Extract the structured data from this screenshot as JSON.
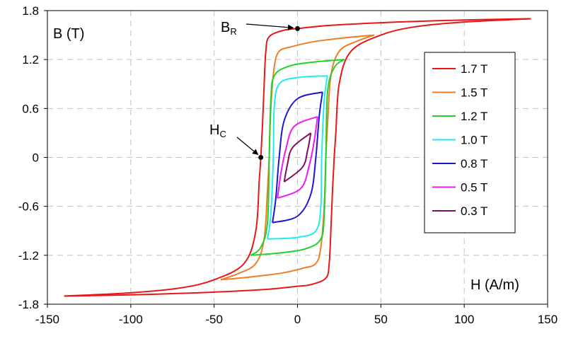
{
  "chart_data": {
    "type": "line",
    "title": "",
    "xlabel": "H (A/m)",
    "ylabel": "B (T)",
    "xlim": [
      -150,
      150
    ],
    "ylim": [
      -1.8,
      1.8
    ],
    "xticks": [
      -150,
      -100,
      -50,
      0,
      50,
      100,
      150
    ],
    "yticks": [
      -1.8,
      -1.2,
      -0.6,
      0,
      0.6,
      1.2,
      1.8
    ],
    "ytick_labels": [
      "-1.8",
      "-1.2",
      "-0.6",
      "0",
      "0.6",
      "1.2",
      "1.8"
    ],
    "grid": "dashed",
    "legend_position": "right",
    "series": [
      {
        "name": "1.7 T",
        "color": "#e8161b",
        "upper": [
          [
            -140,
            -1.7
          ],
          [
            -100,
            -1.66
          ],
          [
            -70,
            -1.6
          ],
          [
            -50,
            -1.5
          ],
          [
            -32,
            -1.3
          ],
          [
            -25,
            -0.9
          ],
          [
            -23,
            -0.3
          ],
          [
            -22,
            0.0
          ],
          [
            -21,
            0.4
          ],
          [
            -20,
            0.9
          ],
          [
            -19,
            1.3
          ],
          [
            -17,
            1.48
          ],
          [
            -8,
            1.56
          ],
          [
            0,
            1.58
          ],
          [
            20,
            1.62
          ],
          [
            60,
            1.66
          ],
          [
            100,
            1.685
          ],
          [
            140,
            1.7
          ]
        ],
        "lower": [
          [
            140,
            1.7
          ],
          [
            100,
            1.66
          ],
          [
            70,
            1.6
          ],
          [
            50,
            1.5
          ],
          [
            32,
            1.3
          ],
          [
            25,
            0.9
          ],
          [
            23,
            0.3
          ],
          [
            22,
            0.0
          ],
          [
            21,
            -0.4
          ],
          [
            20,
            -0.9
          ],
          [
            19,
            -1.3
          ],
          [
            17,
            -1.48
          ],
          [
            8,
            -1.56
          ],
          [
            0,
            -1.58
          ],
          [
            -20,
            -1.62
          ],
          [
            -60,
            -1.66
          ],
          [
            -100,
            -1.685
          ],
          [
            -140,
            -1.7
          ]
        ]
      },
      {
        "name": "1.5 T",
        "color": "#ef7d25",
        "upper": [
          [
            -46,
            -1.5
          ],
          [
            -35,
            -1.42
          ],
          [
            -25,
            -1.3
          ],
          [
            -20,
            -1.0
          ],
          [
            -18,
            -0.4
          ],
          [
            -17,
            0.0
          ],
          [
            -16,
            0.6
          ],
          [
            -14,
            1.1
          ],
          [
            -11,
            1.3
          ],
          [
            -3,
            1.36
          ],
          [
            10,
            1.42
          ],
          [
            30,
            1.47
          ],
          [
            46,
            1.5
          ]
        ],
        "lower": [
          [
            46,
            1.5
          ],
          [
            35,
            1.42
          ],
          [
            25,
            1.3
          ],
          [
            20,
            1.0
          ],
          [
            18,
            0.4
          ],
          [
            17,
            0.0
          ],
          [
            16,
            -0.6
          ],
          [
            14,
            -1.1
          ],
          [
            11,
            -1.3
          ],
          [
            3,
            -1.36
          ],
          [
            -10,
            -1.42
          ],
          [
            -30,
            -1.47
          ],
          [
            -46,
            -1.5
          ]
        ]
      },
      {
        "name": "1.2 T",
        "color": "#22d12a",
        "upper": [
          [
            -28,
            -1.2
          ],
          [
            -22,
            -1.1
          ],
          [
            -18,
            -0.8
          ],
          [
            -17,
            0.0
          ],
          [
            -16,
            0.7
          ],
          [
            -14,
            1.0
          ],
          [
            -5,
            1.12
          ],
          [
            10,
            1.17
          ],
          [
            28,
            1.2
          ]
        ],
        "lower": [
          [
            28,
            1.2
          ],
          [
            22,
            1.1
          ],
          [
            18,
            0.8
          ],
          [
            17,
            0.0
          ],
          [
            16,
            -0.7
          ],
          [
            14,
            -1.0
          ],
          [
            5,
            -1.12
          ],
          [
            -10,
            -1.17
          ],
          [
            -28,
            -1.2
          ]
        ]
      },
      {
        "name": "1.0 T",
        "color": "#22eaf1",
        "upper": [
          [
            -18,
            -1.0
          ],
          [
            -16,
            -0.7
          ],
          [
            -14.5,
            0.0
          ],
          [
            -14,
            0.6
          ],
          [
            -11,
            0.9
          ],
          [
            0,
            0.98
          ],
          [
            18,
            1.0
          ]
        ],
        "lower": [
          [
            18,
            1.0
          ],
          [
            16,
            0.7
          ],
          [
            14.5,
            0.0
          ],
          [
            14,
            -0.6
          ],
          [
            11,
            -0.9
          ],
          [
            0,
            -0.98
          ],
          [
            -18,
            -1.0
          ]
        ]
      },
      {
        "name": "0.8 T",
        "color": "#1b16d6",
        "upper": [
          [
            -15,
            -0.8
          ],
          [
            -13,
            -0.5
          ],
          [
            -11,
            0.0
          ],
          [
            -8,
            0.45
          ],
          [
            0,
            0.72
          ],
          [
            15,
            0.8
          ]
        ],
        "lower": [
          [
            15,
            0.8
          ],
          [
            13,
            0.5
          ],
          [
            11,
            0.0
          ],
          [
            8,
            -0.45
          ],
          [
            0,
            -0.72
          ],
          [
            -15,
            -0.8
          ]
        ]
      },
      {
        "name": "0.5 T",
        "color": "#f01bf0",
        "upper": [
          [
            -12,
            -0.5
          ],
          [
            -10,
            -0.2
          ],
          [
            -7,
            0.1
          ],
          [
            -2,
            0.38
          ],
          [
            12,
            0.5
          ]
        ],
        "lower": [
          [
            12,
            0.5
          ],
          [
            10,
            0.2
          ],
          [
            7,
            -0.1
          ],
          [
            2,
            -0.38
          ],
          [
            -12,
            -0.5
          ]
        ]
      },
      {
        "name": "0.3 T",
        "color": "#7d0f5e",
        "upper": [
          [
            -8,
            -0.3
          ],
          [
            -6,
            -0.08
          ],
          [
            -3,
            0.12
          ],
          [
            8,
            0.3
          ]
        ],
        "lower": [
          [
            8,
            0.3
          ],
          [
            6,
            0.08
          ],
          [
            3,
            -0.12
          ],
          [
            -8,
            -0.3
          ]
        ]
      }
    ],
    "annotations": [
      {
        "main": "B",
        "sub": "R",
        "x": 0,
        "y": 1.58
      },
      {
        "main": "H",
        "sub": "C",
        "x": -22,
        "y": 0.0
      }
    ]
  }
}
